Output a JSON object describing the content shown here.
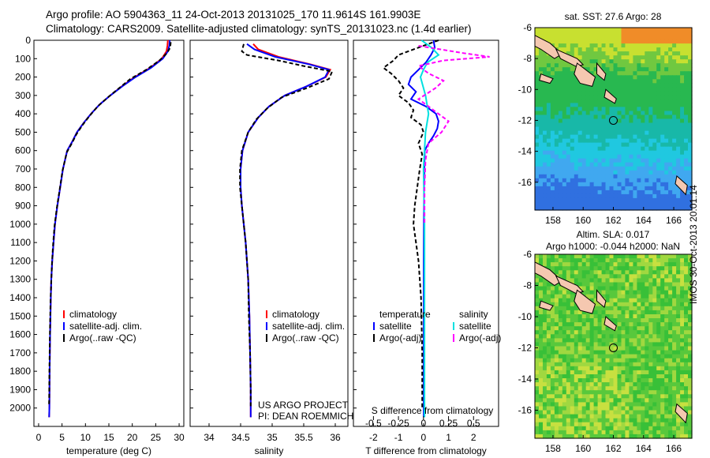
{
  "titles": {
    "line1": "Argo profile: AO 5904363_11 24-Oct-2013 20131025_170 11.9614S 161.9903E",
    "line2": "Climatology: CARS2009. Satellite-adjusted climatology: synTS_20131023.nc (1.4d earlier)"
  },
  "colors": {
    "climatology": "#ff0000",
    "satellite": "#0000ff",
    "argo": "#000000",
    "sal_satellite": "#00e0e0",
    "sal_argo": "#ff00ff",
    "land": "#f5c8b0",
    "marker": "#000000"
  },
  "chart_data": [
    {
      "id": "temperature",
      "type": "line",
      "xlabel": "temperature (deg C)",
      "ylabel": "",
      "xlim": [
        -1,
        31
      ],
      "ylim": [
        2100,
        0
      ],
      "xticks": [
        0,
        5,
        10,
        15,
        20,
        25,
        30
      ],
      "xtick_labels": [
        "0",
        "5",
        "10",
        "15",
        "20",
        "25",
        "30"
      ],
      "yticks": [
        0,
        100,
        200,
        300,
        400,
        500,
        600,
        700,
        800,
        900,
        1000,
        1100,
        1200,
        1300,
        1400,
        1500,
        1600,
        1700,
        1800,
        1900,
        2000
      ],
      "ytick_labels": [
        "0",
        "100",
        "200",
        "300",
        "400",
        "500",
        "600",
        "700",
        "800",
        "900",
        "1000",
        "1100",
        "1200",
        "1300",
        "1400",
        "1500",
        "1600",
        "1700",
        "1800",
        "1900",
        "2000"
      ],
      "legend": [
        "climatology",
        "satellite-adj. clim.",
        "Argo(..raw -QC)"
      ],
      "series": [
        {
          "name": "climatology",
          "color": "#ff0000",
          "dash": "",
          "x": [
            27.6,
            27.5,
            27.3,
            26.3,
            23.8,
            20.5,
            17.8,
            15.3,
            13.0,
            11.2,
            9.6,
            8.2,
            7.2,
            6.1,
            5.2,
            4.6,
            4.0,
            3.5,
            3.2,
            2.9,
            2.7,
            2.6,
            2.45,
            2.35,
            2.3,
            2.25
          ],
          "y": [
            0,
            30,
            60,
            100,
            150,
            200,
            250,
            300,
            350,
            400,
            450,
            500,
            550,
            600,
            700,
            800,
            900,
            1000,
            1100,
            1200,
            1300,
            1400,
            1600,
            1800,
            2000,
            2050
          ]
        },
        {
          "name": "satellite-adj. clim.",
          "color": "#0000ff",
          "dash": "",
          "x": [
            28.0,
            27.9,
            27.6,
            26.5,
            24.0,
            20.7,
            17.9,
            15.3,
            13.0,
            11.2,
            9.6,
            8.2,
            7.2,
            6.1,
            5.2,
            4.6,
            4.0,
            3.5,
            3.2,
            2.9,
            2.7,
            2.6,
            2.45,
            2.35,
            2.3,
            2.25
          ],
          "y": [
            0,
            30,
            60,
            100,
            150,
            200,
            250,
            300,
            350,
            400,
            450,
            500,
            550,
            600,
            700,
            800,
            900,
            1000,
            1100,
            1200,
            1300,
            1400,
            1600,
            1800,
            2000,
            2050
          ]
        },
        {
          "name": "Argo(..raw -QC)",
          "color": "#000000",
          "dash": "5,3",
          "x": [
            28.2,
            28.1,
            27.4,
            25.8,
            23.0,
            19.6,
            17.2,
            14.8,
            12.6,
            10.9,
            9.4,
            8.1,
            7.1,
            6.0,
            5.1,
            4.5,
            3.9,
            3.4,
            3.1,
            2.85,
            2.7,
            2.55,
            2.4,
            2.3,
            2.25,
            2.2
          ],
          "y": [
            10,
            40,
            70,
            110,
            160,
            210,
            260,
            310,
            360,
            410,
            460,
            510,
            560,
            610,
            710,
            810,
            910,
            1010,
            1110,
            1210,
            1310,
            1410,
            1610,
            1810,
            1960,
            1990
          ]
        }
      ]
    },
    {
      "id": "salinity",
      "type": "line",
      "xlabel": "salinity",
      "xlim": [
        33.7,
        36.2
      ],
      "ylim": [
        2100,
        0
      ],
      "xticks": [
        34,
        34.5,
        35,
        35.5,
        36
      ],
      "xtick_labels": [
        "34",
        "34.5",
        "35",
        "35.5",
        "36"
      ],
      "legend": [
        "climatology",
        "satellite-adj. clim.",
        "Argo(..raw -QC)"
      ],
      "annotation": [
        "US ARGO PROJECT",
        "PI: DEAN ROEMMICH"
      ],
      "series": [
        {
          "name": "climatology",
          "color": "#ff0000",
          "dash": "",
          "x": [
            34.7,
            34.78,
            35.1,
            35.6,
            35.92,
            35.85,
            35.55,
            35.2,
            34.95,
            34.78,
            34.62,
            34.53,
            34.5,
            34.5,
            34.52,
            34.55,
            34.58,
            34.6,
            34.62,
            34.64,
            34.65,
            34.66,
            34.66
          ],
          "y": [
            20,
            50,
            90,
            130,
            160,
            200,
            250,
            300,
            360,
            420,
            500,
            600,
            700,
            800,
            900,
            1000,
            1100,
            1200,
            1300,
            1500,
            1700,
            1900,
            2050
          ]
        },
        {
          "name": "satellite-adj. clim.",
          "color": "#0000ff",
          "dash": "",
          "x": [
            34.6,
            34.72,
            35.05,
            35.58,
            35.9,
            35.84,
            35.55,
            35.2,
            34.95,
            34.78,
            34.62,
            34.53,
            34.5,
            34.5,
            34.52,
            34.55,
            34.58,
            34.6,
            34.62,
            34.64,
            34.65,
            34.66,
            34.66
          ],
          "y": [
            20,
            50,
            90,
            130,
            160,
            200,
            250,
            300,
            360,
            420,
            500,
            600,
            700,
            800,
            900,
            1000,
            1100,
            1200,
            1300,
            1500,
            1700,
            1900,
            2050
          ]
        },
        {
          "name": "Argo(..raw -QC)",
          "color": "#000000",
          "dash": "5,3",
          "x": [
            34.55,
            34.52,
            34.6,
            35.1,
            35.5,
            35.95,
            35.9,
            35.55,
            35.15,
            34.92,
            34.75,
            34.62,
            34.52,
            34.49,
            34.49,
            34.52,
            34.55,
            34.58,
            34.6,
            34.62,
            34.63,
            34.65,
            34.66,
            34.66
          ],
          "y": [
            20,
            60,
            80,
            110,
            140,
            170,
            210,
            260,
            310,
            370,
            430,
            500,
            600,
            700,
            800,
            900,
            1000,
            1100,
            1200,
            1300,
            1500,
            1700,
            1900,
            1990
          ]
        }
      ]
    },
    {
      "id": "difference",
      "type": "line",
      "xlabel": "T difference from climatology",
      "xlabel_top": "S difference from climatology",
      "xlim": [
        -2.8,
        3.0
      ],
      "ylim": [
        2100,
        0
      ],
      "xticks": [
        -2,
        -1,
        0,
        1,
        2
      ],
      "xtick_labels": [
        "-2",
        "-1",
        "0",
        "1",
        "2"
      ],
      "xticks_top": [
        -0.5,
        -0.25,
        0,
        0.25,
        0.5
      ],
      "xtick_labels_top": [
        "-0.5",
        "-0.25",
        "0",
        "0.25",
        "0.5"
      ],
      "legend_headers": [
        "temperature",
        "salinity"
      ],
      "legend": [
        "satellite",
        "Argo(-adj)",
        "satellite",
        "Argo(-adj)"
      ],
      "series": [
        {
          "name": "temperature satellite",
          "color": "#0000ff",
          "dash": "",
          "x": [
            0.4,
            0.45,
            0.3,
            0.1,
            -0.2,
            -0.5,
            -0.6,
            -0.3,
            -0.5,
            0.1,
            0.5,
            0.6,
            0.55,
            0.4,
            0.2,
            0.05,
            0.02,
            0.01,
            0.01,
            0.01
          ],
          "y": [
            0,
            40,
            80,
            120,
            160,
            200,
            240,
            280,
            320,
            360,
            400,
            440,
            480,
            520,
            560,
            600,
            800,
            1200,
            1600,
            2050
          ]
        },
        {
          "name": "temperature Argo(-adj)",
          "color": "#000000",
          "dash": "5,3",
          "x": [
            0.6,
            -0.4,
            -1.0,
            -1.2,
            -1.6,
            -1.3,
            -1.0,
            -0.8,
            -1.0,
            -0.6,
            -0.4,
            -0.5,
            -0.1,
            0.0,
            -0.2,
            -0.05,
            -0.15,
            -0.25,
            -0.35,
            -0.4,
            -0.3,
            -0.2,
            -0.1,
            -0.05,
            -0.05
          ],
          "y": [
            0,
            50,
            80,
            110,
            150,
            180,
            220,
            260,
            300,
            340,
            380,
            420,
            460,
            500,
            560,
            620,
            700,
            800,
            900,
            1000,
            1100,
            1200,
            1400,
            1700,
            2000
          ]
        },
        {
          "name": "salinity satellite",
          "color": "#00e0e0",
          "dash": "",
          "x": [
            -0.02,
            0.08,
            0.15,
            0.04,
            0.0,
            -0.03,
            0.02,
            0.05,
            0.02,
            0.0,
            0.01,
            0.01,
            0.01
          ],
          "y": [
            0,
            40,
            80,
            120,
            160,
            200,
            300,
            400,
            500,
            700,
            1000,
            1500,
            2050
          ]
        },
        {
          "name": "salinity Argo(-adj)",
          "color": "#ff00ff",
          "dash": "5,3",
          "x": [
            -0.05,
            0.4,
            0.66,
            0.2,
            -0.05,
            0.05,
            0.2,
            0.12,
            -0.05,
            0.1,
            0.25,
            0.18,
            0.05,
            0.02,
            0.01,
            0.01
          ],
          "y": [
            30,
            70,
            90,
            110,
            140,
            180,
            220,
            260,
            320,
            380,
            440,
            500,
            560,
            650,
            800,
            1000
          ]
        }
      ]
    },
    {
      "id": "sst_map",
      "type": "heatmap",
      "title": "sat. SST: 27.6 Argo: 28",
      "xlim": [
        156.8,
        167.2
      ],
      "ylim": [
        -17.8,
        -6
      ],
      "xticks": [
        158,
        160,
        162,
        164,
        166
      ],
      "xtick_labels": [
        "158",
        "160",
        "162",
        "164",
        "166"
      ],
      "yticks": [
        -6,
        -8,
        -10,
        -12,
        -14,
        -16
      ],
      "ytick_labels": [
        "-6",
        "-8",
        "-10",
        "-12",
        "-14",
        "-16"
      ],
      "marker": {
        "lon": 162.0,
        "lat": -12.0
      },
      "description": "Sea surface temperature: warm (orange/yellow) to the north, cyan to light blue to the south"
    },
    {
      "id": "sla_map",
      "type": "heatmap",
      "title": "Altim. SLA: 0.017",
      "subtitle": "Argo h1000: -0.044 h2000: NaN",
      "xlim": [
        156.8,
        167.2
      ],
      "ylim": [
        -17.8,
        -6
      ],
      "xticks": [
        158,
        160,
        162,
        164,
        166
      ],
      "xtick_labels": [
        "158",
        "160",
        "162",
        "164",
        "166"
      ],
      "yticks": [
        -6,
        -8,
        -10,
        -12,
        -14,
        -16
      ],
      "ytick_labels": [
        "-6",
        "-8",
        "-10",
        "-12",
        "-14",
        "-16"
      ],
      "marker": {
        "lon": 162.0,
        "lat": -12.0
      },
      "description": "Sea level anomaly: mostly green with yellow-green patches"
    }
  ],
  "stamp": "IMOS 30-Oct-2013 20:01:14"
}
